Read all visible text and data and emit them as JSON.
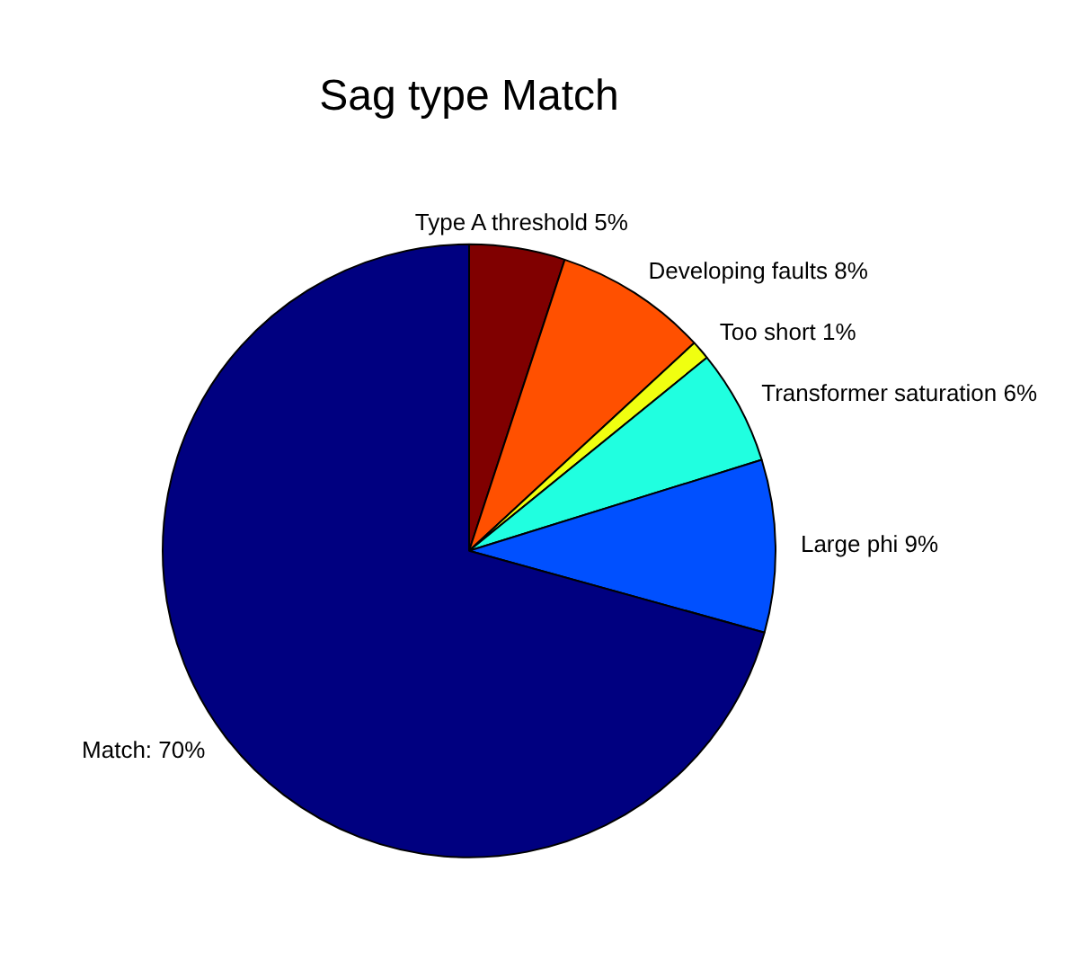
{
  "chart_data": {
    "type": "pie",
    "title": "Sag type Match",
    "categories": [
      "Type A threshold 5%",
      "Developing faults 8%",
      "Too short 1%",
      "Transformer saturation 6%",
      "Large phi 9%",
      "Match: 70%"
    ],
    "values": [
      5,
      8,
      1,
      6,
      9,
      70
    ],
    "colors": [
      "#800000",
      "#ff5000",
      "#f0ff10",
      "#20ffe0",
      "#0050ff",
      "#000080"
    ],
    "legend": false
  }
}
